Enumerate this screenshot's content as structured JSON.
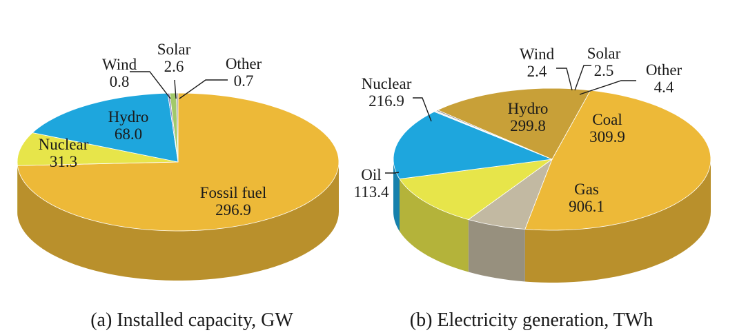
{
  "chart_data": [
    {
      "type": "pie",
      "title": "(a) Installed capacity, GW",
      "style": "3d",
      "slices": [
        {
          "name": "Fossil fuel",
          "value": 296.9,
          "value_text": "296.9",
          "color": "#EDB938"
        },
        {
          "name": "Nuclear",
          "value": 31.3,
          "value_text": "31.3",
          "color": "#E7E54A"
        },
        {
          "name": "Hydro",
          "value": 68.0,
          "value_text": "68.0",
          "color": "#1EA6DD"
        },
        {
          "name": "Wind",
          "value": 0.8,
          "value_text": "0.8",
          "color": "#8E8EC2"
        },
        {
          "name": "Solar",
          "value": 2.6,
          "value_text": "2.6",
          "color": "#A2C96A"
        },
        {
          "name": "Other",
          "value": 0.7,
          "value_text": "0.7",
          "color": "#9E9E9E"
        }
      ]
    },
    {
      "type": "pie",
      "title": "(b) Electricity generation, TWh",
      "style": "3d",
      "slices": [
        {
          "name": "Gas",
          "value": 906.1,
          "value_text": "906.1",
          "color": "#EDB938"
        },
        {
          "name": "Oil",
          "value": 113.4,
          "value_text": "113.4",
          "color": "#C2B9A2"
        },
        {
          "name": "Nuclear",
          "value": 216.9,
          "value_text": "216.9",
          "color": "#E7E54A"
        },
        {
          "name": "Hydro",
          "value": 299.8,
          "value_text": "299.8",
          "color": "#1EA6DD"
        },
        {
          "name": "Wind",
          "value": 2.4,
          "value_text": "2.4",
          "color": "#A8A8A8"
        },
        {
          "name": "Solar",
          "value": 2.5,
          "value_text": "2.5",
          "color": "#B7B7B7"
        },
        {
          "name": "Other",
          "value": 4.4,
          "value_text": "4.4",
          "color": "#8F8F8F"
        },
        {
          "name": "Coal",
          "value": 309.9,
          "value_text": "309.9",
          "color": "#C8A038"
        }
      ]
    }
  ]
}
